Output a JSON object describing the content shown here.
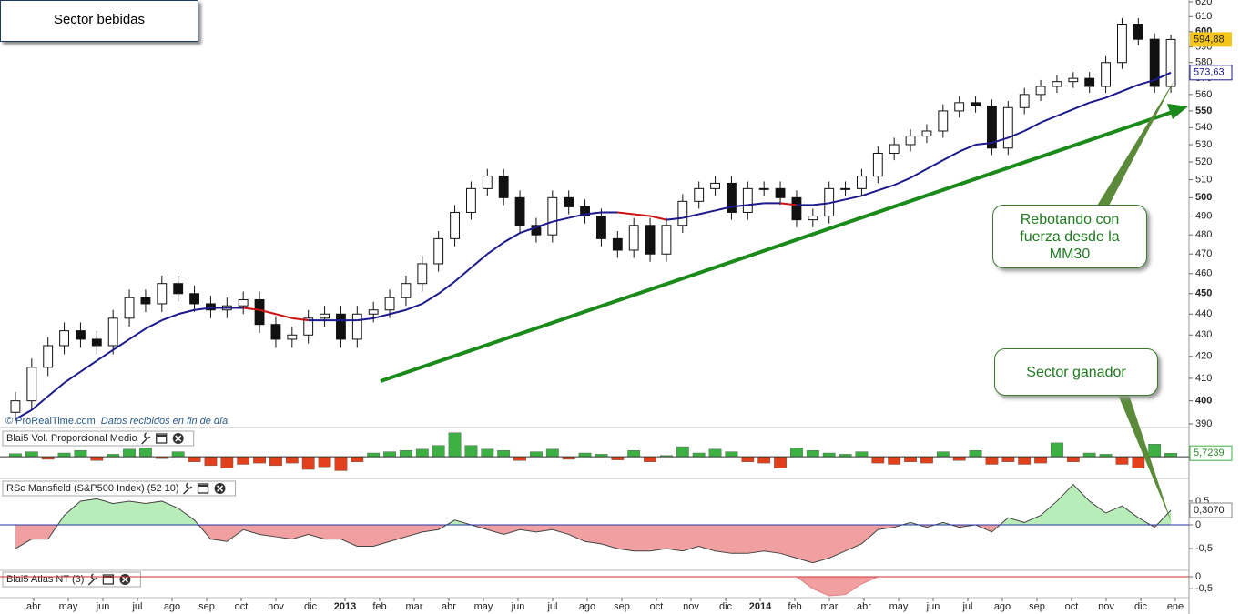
{
  "chart_data": [
    {
      "type": "candlestick",
      "title": "Sector bebidas",
      "open": [
        395,
        400,
        415,
        425,
        432,
        428,
        425,
        438,
        448,
        445,
        455,
        450,
        445,
        442,
        444,
        447,
        435,
        428,
        430,
        438,
        440,
        428,
        440,
        442,
        448,
        455,
        465,
        478,
        492,
        505,
        512,
        500,
        485,
        480,
        500,
        495,
        490,
        478,
        472,
        485,
        470,
        485,
        498,
        505,
        508,
        492,
        505,
        505,
        500,
        488,
        490,
        505,
        505,
        512,
        525,
        530,
        535,
        538,
        550,
        555,
        553,
        528,
        552,
        560,
        565,
        568,
        570,
        565,
        580,
        605,
        595,
        565
      ],
      "high": [
        404,
        419,
        429,
        436,
        436,
        432,
        442,
        452,
        452,
        459,
        459,
        454,
        449,
        448,
        451,
        451,
        439,
        434,
        442,
        444,
        444,
        444,
        446,
        452,
        459,
        469,
        482,
        496,
        509,
        516,
        516,
        504,
        489,
        504,
        504,
        499,
        494,
        482,
        489,
        489,
        489,
        502,
        509,
        512,
        512,
        509,
        509,
        509,
        504,
        494,
        509,
        509,
        516,
        529,
        534,
        539,
        542,
        554,
        559,
        559,
        557,
        556,
        564,
        569,
        572,
        574,
        574,
        584,
        609,
        609,
        599,
        598
      ],
      "low": [
        391,
        396,
        411,
        421,
        424,
        421,
        421,
        434,
        441,
        441,
        446,
        441,
        438,
        438,
        440,
        431,
        424,
        424,
        426,
        434,
        424,
        424,
        436,
        438,
        444,
        451,
        461,
        474,
        488,
        501,
        496,
        481,
        476,
        476,
        491,
        486,
        474,
        468,
        468,
        466,
        466,
        481,
        494,
        501,
        488,
        488,
        501,
        496,
        484,
        484,
        486,
        501,
        501,
        508,
        521,
        526,
        531,
        534,
        546,
        549,
        524,
        524,
        548,
        556,
        561,
        564,
        561,
        561,
        576,
        591,
        561,
        561
      ],
      "close": [
        400,
        415,
        425,
        432,
        428,
        425,
        438,
        448,
        445,
        455,
        450,
        445,
        442,
        444,
        447,
        435,
        428,
        430,
        438,
        440,
        428,
        440,
        442,
        448,
        455,
        465,
        478,
        492,
        505,
        512,
        500,
        485,
        480,
        500,
        495,
        490,
        478,
        472,
        485,
        470,
        485,
        498,
        505,
        508,
        492,
        505,
        505,
        500,
        488,
        490,
        505,
        505,
        512,
        525,
        530,
        535,
        538,
        550,
        555,
        553,
        528,
        552,
        560,
        565,
        568,
        570,
        565,
        580,
        605,
        595,
        565,
        594.88
      ],
      "value_labels": {
        "71": "594,88"
      },
      "up_color": "#ffffff",
      "down_color": "#111111",
      "label_color": "#f5c518",
      "ma": {
        "color": "#1a1a8c",
        "down_color": "#cc1111",
        "values": [
          392,
          396,
          402,
          408,
          413,
          418,
          423,
          428,
          433,
          437,
          440,
          442,
          443,
          443,
          443,
          442,
          440,
          438,
          437,
          437,
          437,
          437,
          438,
          440,
          442,
          445,
          450,
          456,
          463,
          470,
          476,
          481,
          484,
          487,
          489,
          491,
          492,
          492,
          491,
          490,
          488,
          489,
          491,
          493,
          495,
          496,
          497,
          497,
          496,
          496,
          497,
          499,
          501,
          504,
          507,
          511,
          516,
          521,
          526,
          530,
          531,
          534,
          538,
          543,
          547,
          551,
          555,
          558,
          562,
          566,
          569,
          573.63
        ],
        "value_labels": {
          "71": "573,63"
        }
      },
      "ylim": [
        390,
        620
      ],
      "log": true,
      "yticks": [
        390,
        400,
        410,
        420,
        430,
        440,
        450,
        460,
        470,
        480,
        490,
        500,
        510,
        520,
        530,
        540,
        550,
        560,
        570,
        580,
        590,
        600,
        610,
        620
      ]
    },
    {
      "type": "bar",
      "title": "Blai5 Vol. Proporcional Medio",
      "values": [
        5,
        8,
        -4,
        6,
        10,
        -6,
        4,
        12,
        14,
        -3,
        8,
        -8,
        -14,
        -18,
        -12,
        -10,
        -14,
        -10,
        -20,
        -16,
        -22,
        -8,
        6,
        8,
        10,
        12,
        18,
        38,
        18,
        12,
        10,
        -6,
        8,
        12,
        -4,
        6,
        4,
        -5,
        10,
        -8,
        2,
        16,
        6,
        12,
        8,
        -8,
        -10,
        -18,
        14,
        10,
        6,
        4,
        8,
        -10,
        -12,
        -8,
        -10,
        8,
        -6,
        10,
        -12,
        -8,
        -12,
        -10,
        22,
        -8,
        6,
        4,
        -12,
        -18,
        20,
        5.7239
      ],
      "value_labels": {
        "71": "5,7239"
      },
      "up_color": "#3cb043",
      "down_color": "#e2401c",
      "ylim": [
        -30,
        42
      ],
      "yticks": [
        0
      ]
    },
    {
      "type": "area",
      "title": "RSc Mansfield (S&P500 Index) (52 10)",
      "values": [
        -0.5,
        -0.3,
        -0.3,
        0.2,
        0.5,
        0.55,
        0.45,
        0.5,
        0.45,
        0.5,
        0.35,
        0.1,
        -0.3,
        -0.35,
        -0.1,
        -0.2,
        -0.25,
        -0.3,
        -0.2,
        -0.3,
        -0.3,
        -0.45,
        -0.45,
        -0.35,
        -0.25,
        -0.15,
        -0.1,
        0.1,
        0,
        -0.1,
        -0.2,
        -0.1,
        -0.15,
        -0.1,
        -0.2,
        -0.35,
        -0.4,
        -0.5,
        -0.55,
        -0.55,
        -0.5,
        -0.55,
        -0.45,
        -0.55,
        -0.6,
        -0.6,
        -0.55,
        -0.6,
        -0.7,
        -0.8,
        -0.7,
        -0.55,
        -0.4,
        -0.1,
        -0.05,
        0.05,
        -0.05,
        0.05,
        -0.05,
        0,
        -0.15,
        0.15,
        0.05,
        0.2,
        0.5,
        0.85,
        0.5,
        0.25,
        0.4,
        0.15,
        -0.05,
        0.307
      ],
      "value_labels": {
        "71": "0,3070"
      },
      "up_color": "#b8ecb8",
      "down_color": "#f0a0a0",
      "line_color": "#444444",
      "zero_color": "#2233aa",
      "ylim": [
        -0.92,
        0.94
      ],
      "yticks": [
        {
          "value": 0.5,
          "label": "0,5"
        },
        0,
        {
          "value": -0.5,
          "label": "-0,5"
        }
      ]
    },
    {
      "type": "area",
      "title": "Blai5 Atlas NT (3)",
      "values": [
        0,
        0,
        0,
        0,
        0,
        0,
        0,
        0,
        0,
        0,
        0,
        0,
        0,
        0,
        0,
        0,
        0,
        0,
        0,
        0,
        0,
        0,
        0,
        0,
        0,
        0,
        0,
        0,
        0,
        0,
        0,
        0,
        0,
        0,
        0,
        0,
        0,
        0,
        0,
        0,
        0,
        0,
        0,
        0,
        0,
        0,
        0,
        0,
        0,
        -0.5,
        -0.8,
        -0.75,
        -0.3,
        0,
        0,
        0,
        0,
        0,
        0,
        0,
        0,
        0,
        0,
        0,
        0,
        0,
        0,
        0,
        0,
        0,
        0,
        0
      ],
      "up_color": "#b8ecb8",
      "down_color": "#f0a0a0",
      "line_color": "#e08080",
      "zero_color": "#cc3333",
      "ylim": [
        -0.8,
        0.23
      ],
      "yticks": [
        0,
        {
          "value": -0.5,
          "label": "-0,5"
        }
      ]
    }
  ],
  "x_axis": {
    "labels": [
      "abr",
      "may",
      "jun",
      "jul",
      "ago",
      "sep",
      "oct",
      "nov",
      "dic",
      "2013",
      "feb",
      "mar",
      "abr",
      "may",
      "jun",
      "jul",
      "ago",
      "sep",
      "oct",
      "nov",
      "dic",
      "2014",
      "feb",
      "mar",
      "abr",
      "may",
      "jun",
      "jul",
      "ago",
      "sep",
      "oct",
      "nov",
      "dic",
      "ene"
    ]
  },
  "watermark": "© ProRealTime.com",
  "watermark_note": "Datos recibidos en fin de día",
  "annotations": [
    "Rebotando con fuerza desde la MM30",
    "Sector ganador"
  ]
}
